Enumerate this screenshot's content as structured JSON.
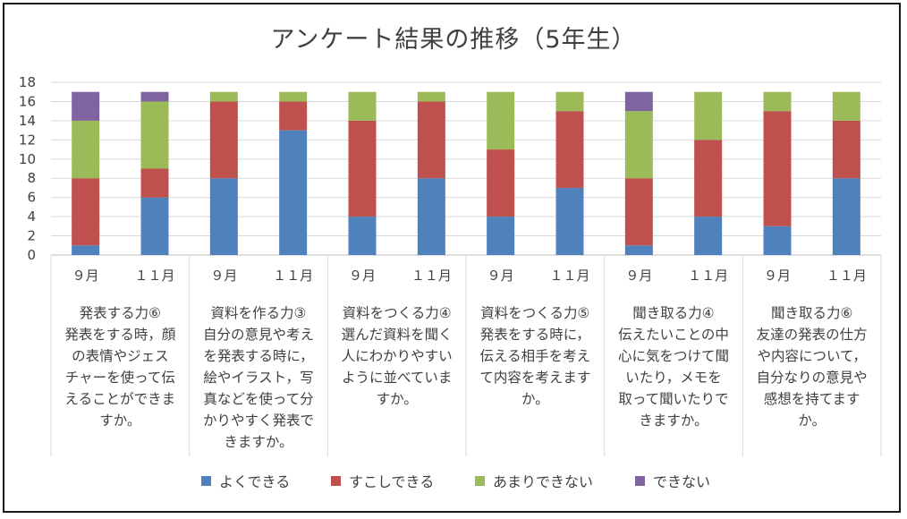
{
  "chart_data": {
    "type": "bar",
    "stacked": true,
    "title": "アンケート結果の推移（5年生）",
    "ylim": [
      0,
      18
    ],
    "yticks": [
      0,
      2,
      4,
      6,
      8,
      10,
      12,
      14,
      16,
      18
    ],
    "grid": true,
    "legend_position": "bottom",
    "categories": [
      "９月",
      "１１月",
      "９月",
      "１１月",
      "９月",
      "１１月",
      "９月",
      "１１月",
      "９月",
      "１１月",
      "９月",
      "１１月"
    ],
    "groups": [
      {
        "lines": [
          "発表する力⑥",
          "発表をする時，顔",
          "の表情やジェス",
          "チャーを使って伝",
          "えることができま",
          "すか。"
        ]
      },
      {
        "lines": [
          "資料を作る力③",
          "自分の意見や考え",
          "を発表する時に，",
          "絵やイラスト，写",
          "真などを使って分",
          "かりやすく発表で",
          "きますか。"
        ]
      },
      {
        "lines": [
          "資料をつくる力④",
          "選んだ資料を聞く",
          "人にわかりやすい",
          "ように並べていま",
          "すか。"
        ]
      },
      {
        "lines": [
          "資料をつくる力⑤",
          "発表をする時に，",
          "伝える相手を考え",
          "て内容を考えます",
          "か。"
        ]
      },
      {
        "lines": [
          "聞き取る力④",
          "伝えたいことの中",
          "心に気をつけて聞",
          "いたり，メモを",
          "取って聞いたりで",
          "きますか。"
        ]
      },
      {
        "lines": [
          "聞き取る力⑥",
          "友達の発表の仕方",
          "や内容について，",
          "自分なりの意見や",
          "感想を持てます",
          "か。"
        ]
      }
    ],
    "series": [
      {
        "name": "よくできる",
        "color": "#4f81bd",
        "values": [
          1,
          6,
          8,
          13,
          4,
          8,
          4,
          7,
          1,
          4,
          3,
          8
        ]
      },
      {
        "name": "すこしできる",
        "color": "#c0504d",
        "values": [
          7,
          3,
          8,
          3,
          10,
          8,
          7,
          8,
          7,
          8,
          12,
          6
        ]
      },
      {
        "name": "あまりできない",
        "color": "#9bbb59",
        "values": [
          6,
          7,
          1,
          1,
          3,
          1,
          6,
          2,
          7,
          5,
          2,
          3
        ]
      },
      {
        "name": "できない",
        "color": "#8064a2",
        "values": [
          3,
          1,
          0,
          0,
          0,
          0,
          0,
          0,
          2,
          0,
          0,
          0
        ]
      }
    ]
  }
}
